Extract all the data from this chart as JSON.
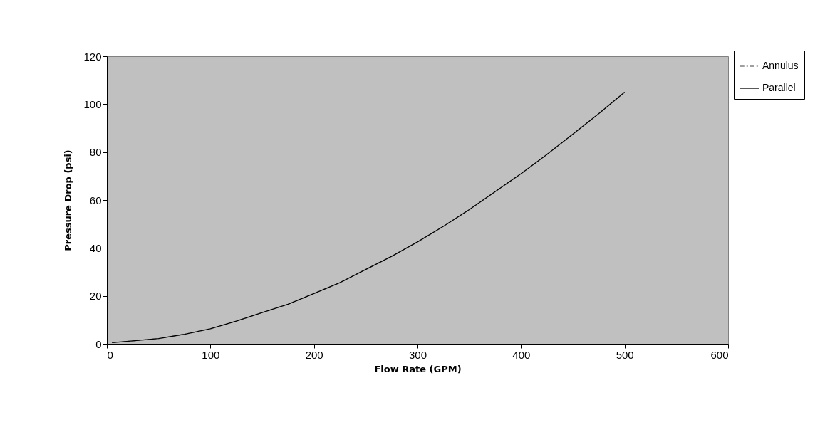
{
  "chart_data": {
    "type": "line",
    "xlabel": "Flow Rate (GPM)",
    "ylabel": "Pressure Drop (psi)",
    "x": [
      5,
      25,
      50,
      75,
      100,
      125,
      150,
      175,
      200,
      225,
      250,
      275,
      300,
      325,
      350,
      375,
      400,
      425,
      450,
      475,
      500
    ],
    "series": [
      {
        "name": "Annulus",
        "color": "#808080",
        "line_style": "dashed",
        "values": [
          0.5,
          1.2,
          2.2,
          4,
          6.3,
          9.5,
          13,
          16.5,
          21,
          25.5,
          31,
          36.5,
          42.5,
          49,
          56,
          63.5,
          71,
          79,
          87.5,
          96,
          105
        ]
      },
      {
        "name": "Parallel",
        "color": "#000000",
        "line_style": "solid",
        "values": [
          0.5,
          1.2,
          2.2,
          4,
          6.3,
          9.5,
          13,
          16.5,
          21,
          25.5,
          31,
          36.5,
          42.5,
          49,
          56,
          63.5,
          71,
          79,
          87.5,
          96,
          105
        ]
      }
    ],
    "xlim": [
      0,
      600
    ],
    "xticks": [
      0,
      100,
      200,
      300,
      400,
      500,
      600
    ],
    "ylim": [
      0,
      120
    ],
    "yticks": [
      0,
      20,
      40,
      60,
      80,
      100,
      120
    ],
    "grid": false,
    "legend": "top right",
    "marker": "none"
  }
}
